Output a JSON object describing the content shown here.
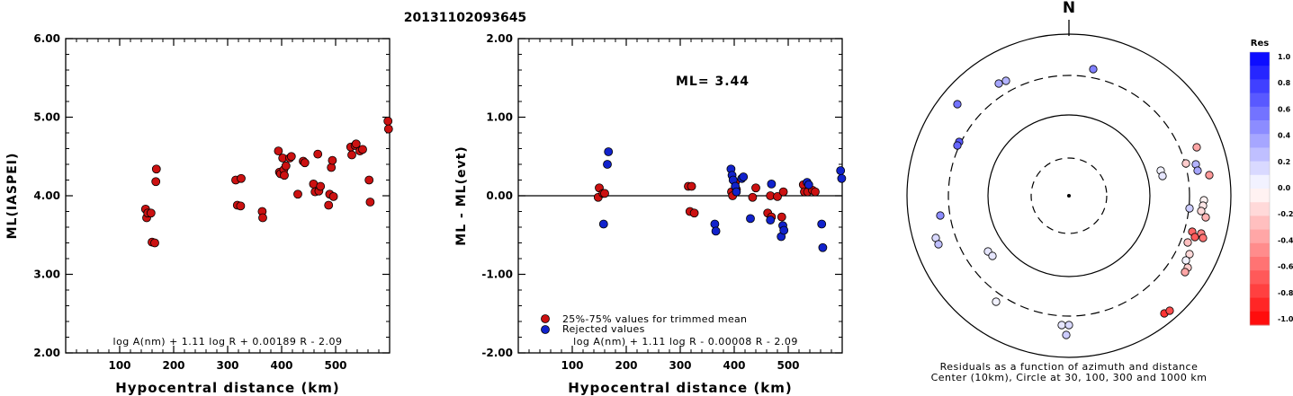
{
  "title": "20131102093645",
  "colors": {
    "trimmed": "#cc1111",
    "rejected": "#1122cc",
    "frame": "#000000",
    "scale_pos": "#0000ff",
    "scale_neg": "#ff0000",
    "scale_zero": "#ffffff"
  },
  "left_panel": {
    "ylabel": "ML(IASPEI)",
    "xlabel": "Hypocentral distance (km)",
    "formula": "log A(nm) + 1.11 log R + 0.00189 R - 2.09",
    "yticks": [
      "6.00",
      "5.00",
      "4.00",
      "3.00",
      "2.00"
    ],
    "xticks": [
      "100",
      "200",
      "300",
      "400",
      "500"
    ]
  },
  "middle_panel": {
    "ylabel": "ML - ML(evt)",
    "xlabel": "Hypocentral distance (km)",
    "ml_label": "ML= 3.44",
    "formula": "log A(nm) + 1.11 log R - 0.00008 R - 2.09",
    "legend_trimmed": "25%-75% values for trimmed mean",
    "legend_rejected": "Rejected values",
    "yticks": [
      "2.00",
      "1.00",
      "0.00",
      "-1.00",
      "-2.00"
    ],
    "xticks": [
      "100",
      "200",
      "300",
      "400",
      "500"
    ]
  },
  "right_panel": {
    "north_label": "N",
    "caption_line1": "Residuals as a function of azimuth and distance",
    "caption_line2": "Center (10km), Circle at 30, 100, 300 and 1000 km",
    "scale_title": "Res",
    "scale_ticks": [
      "1.0",
      "0.8",
      "0.6",
      "0.4",
      "0.2",
      "0.0",
      "-0.2",
      "-0.4",
      "-0.6",
      "-0.8",
      "-1.0"
    ]
  },
  "chart_data": [
    {
      "type": "scatter",
      "title": "20131102093645",
      "xlabel": "Hypocentral distance (km)",
      "ylabel": "ML(IASPEI)",
      "xlim": [
        0,
        600
      ],
      "ylim": [
        2.0,
        6.0
      ],
      "annotation": "log A(nm) + 1.11 log R + 0.00189 R - 2.09",
      "series": [
        {
          "name": "25%-75% values for trimmed mean",
          "x": [
            148,
            150,
            152,
            158,
            160,
            165,
            167,
            168,
            315,
            318,
            324,
            325,
            364,
            365,
            394,
            396,
            398,
            402,
            404,
            405,
            408,
            415,
            418,
            430,
            440,
            443,
            459,
            462,
            467,
            469,
            472,
            487,
            489,
            492,
            494,
            496,
            528,
            530,
            536,
            538,
            545,
            550,
            562,
            564,
            597,
            598
          ],
          "y": [
            3.83,
            3.72,
            3.78,
            3.78,
            3.41,
            3.4,
            4.18,
            4.34,
            4.2,
            3.88,
            3.87,
            4.22,
            3.8,
            3.72,
            4.57,
            4.3,
            4.28,
            4.48,
            4.33,
            4.26,
            4.38,
            4.48,
            4.5,
            4.02,
            4.44,
            4.42,
            4.15,
            4.05,
            4.53,
            4.06,
            4.12,
            3.88,
            4.02,
            4.36,
            4.45,
            3.99,
            4.62,
            4.52,
            4.64,
            4.66,
            4.57,
            4.59,
            4.2,
            3.92,
            4.95,
            4.85
          ]
        }
      ]
    },
    {
      "type": "scatter",
      "xlabel": "Hypocentral distance (km)",
      "ylabel": "ML - ML(evt)",
      "xlim": [
        0,
        600
      ],
      "ylim": [
        -2.0,
        2.0
      ],
      "annotation": "ML= 3.44",
      "series": [
        {
          "name": "25%-75% values for trimmed mean",
          "x": [
            148,
            150,
            157,
            160,
            315,
            318,
            321,
            326,
            395,
            397,
            402,
            404,
            434,
            440,
            462,
            467,
            469,
            480,
            488,
            491,
            528,
            530,
            536,
            545,
            550
          ],
          "y": [
            -0.02,
            0.1,
            0.03,
            0.03,
            0.12,
            -0.2,
            0.12,
            -0.22,
            0.05,
            0.0,
            0.17,
            0.08,
            -0.02,
            0.1,
            -0.22,
            0.0,
            -0.27,
            -0.01,
            -0.27,
            0.05,
            0.14,
            0.05,
            0.05,
            0.07,
            0.05
          ]
        },
        {
          "name": "Rejected values",
          "x": [
            158,
            165,
            167,
            364,
            366,
            394,
            396,
            398,
            402,
            404,
            414,
            417,
            430,
            467,
            469,
            487,
            490,
            492,
            535,
            538,
            562,
            564,
            597,
            599
          ],
          "y": [
            -0.36,
            0.4,
            0.56,
            -0.36,
            -0.45,
            0.34,
            0.26,
            0.2,
            0.12,
            0.05,
            0.22,
            0.24,
            -0.29,
            -0.31,
            0.15,
            -0.52,
            -0.38,
            -0.44,
            0.17,
            0.14,
            -0.36,
            -0.66,
            0.32,
            0.22
          ]
        }
      ]
    }
  ]
}
